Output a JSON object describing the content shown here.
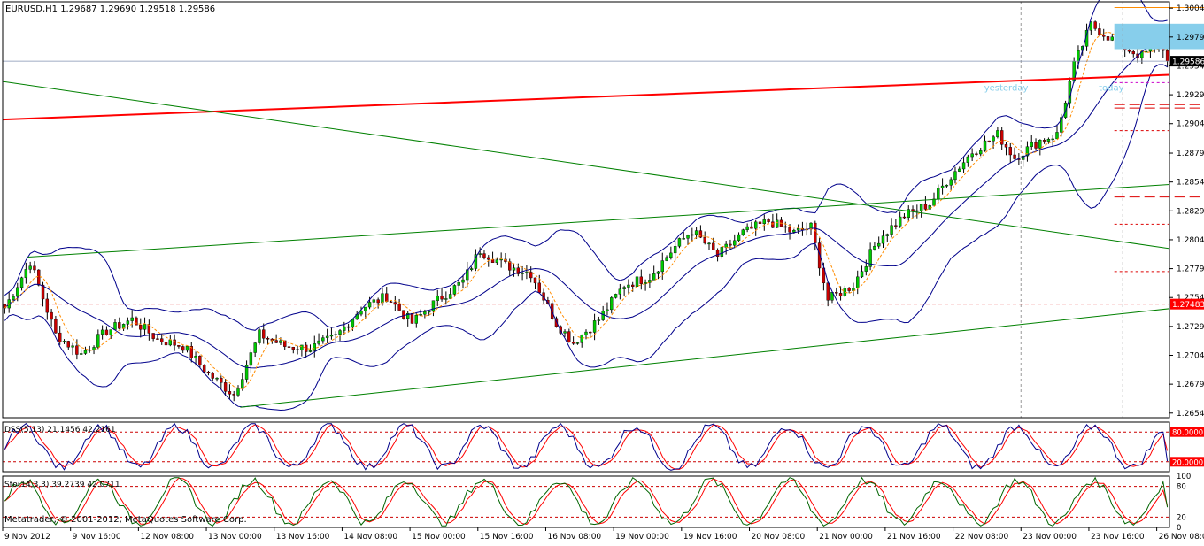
{
  "window": {
    "header": "EURUSD,H1  1.29687 1.29690 1.29518 1.29586",
    "copyright": "Metatrader, © 2001-2012, MetaQuotes Software Corp."
  },
  "chart_data": [
    {
      "type": "candlestick",
      "symbol": "EURUSD",
      "timeframe": "H1",
      "ohlc_last": {
        "open": 1.29687,
        "high": 1.2969,
        "low": 1.29518,
        "close": 1.29586
      },
      "ylim": [
        1.265,
        1.301
      ],
      "y_ticks": [
        "1.30045",
        "1.29795",
        "1.29545",
        "1.29295",
        "1.29045",
        "1.28790",
        "1.28540",
        "1.28290",
        "1.28040",
        "1.27790",
        "1.27540",
        "1.27290",
        "1.27040",
        "1.26790",
        "1.26540"
      ],
      "y_tick_values": [
        1.30045,
        1.29795,
        1.29545,
        1.29295,
        1.29045,
        1.2879,
        1.2854,
        1.2829,
        1.2804,
        1.2779,
        1.2754,
        1.2729,
        1.2704,
        1.2679,
        1.2654
      ],
      "price_tags": [
        {
          "label": "1.29586",
          "value": 1.29586,
          "bg": "#000000",
          "fg": "#ffffff"
        },
        {
          "label": "1.27483",
          "value": 1.27483,
          "bg": "#ff0000",
          "fg": "#ffffff"
        }
      ],
      "x_ticks": [
        "9 Nov 2012",
        "9 Nov 16:00",
        "12 Nov 08:00",
        "13 Nov 00:00",
        "13 Nov 16:00",
        "14 Nov 08:00",
        "15 Nov 00:00",
        "15 Nov 16:00",
        "16 Nov 08:00",
        "19 Nov 00:00",
        "19 Nov 16:00",
        "20 Nov 08:00",
        "21 Nov 00:00",
        "21 Nov 16:00",
        "22 Nov 08:00",
        "23 Nov 00:00",
        "23 Nov 16:00",
        "26 Nov 08:00"
      ],
      "x_tick_indices": [
        0,
        16,
        32,
        48,
        64,
        80,
        96,
        112,
        128,
        144,
        160,
        176,
        192,
        208,
        224,
        240,
        256,
        272
      ],
      "bar_count": 275,
      "anchors": [
        [
          0,
          1.2745
        ],
        [
          6,
          1.2785
        ],
        [
          12,
          1.2722
        ],
        [
          18,
          1.2705
        ],
        [
          24,
          1.2725
        ],
        [
          30,
          1.2735
        ],
        [
          36,
          1.2718
        ],
        [
          42,
          1.2712
        ],
        [
          48,
          1.2688
        ],
        [
          54,
          1.267
        ],
        [
          60,
          1.2722
        ],
        [
          66,
          1.2712
        ],
        [
          72,
          1.271
        ],
        [
          78,
          1.272
        ],
        [
          84,
          1.2745
        ],
        [
          90,
          1.2755
        ],
        [
          96,
          1.2732
        ],
        [
          102,
          1.2752
        ],
        [
          108,
          1.2768
        ],
        [
          112,
          1.2795
        ],
        [
          118,
          1.2782
        ],
        [
          124,
          1.2775
        ],
        [
          130,
          1.2732
        ],
        [
          134,
          1.2715
        ],
        [
          140,
          1.2735
        ],
        [
          146,
          1.2765
        ],
        [
          152,
          1.2772
        ],
        [
          158,
          1.2798
        ],
        [
          162,
          1.2812
        ],
        [
          168,
          1.279
        ],
        [
          174,
          1.281
        ],
        [
          180,
          1.282
        ],
        [
          186,
          1.281
        ],
        [
          190,
          1.2815
        ],
        [
          194,
          1.2752
        ],
        [
          200,
          1.2765
        ],
        [
          206,
          1.2805
        ],
        [
          212,
          1.2825
        ],
        [
          218,
          1.2835
        ],
        [
          222,
          1.2855
        ],
        [
          228,
          1.288
        ],
        [
          234,
          1.2895
        ],
        [
          238,
          1.2875
        ],
        [
          244,
          1.289
        ],
        [
          248,
          1.2895
        ],
        [
          252,
          1.2955
        ],
        [
          256,
          1.299
        ],
        [
          260,
          1.298
        ],
        [
          264,
          1.297
        ],
        [
          268,
          1.2963
        ],
        [
          272,
          1.2975
        ],
        [
          274,
          1.2959
        ]
      ],
      "lines": [
        {
          "name": "red trend line",
          "color": "#ff0000",
          "width": 2,
          "points": [
            [
              0,
              1.2908
            ],
            [
              310,
              1.29517
            ]
          ],
          "style": "solid"
        },
        {
          "name": "green descending",
          "color": "#008000",
          "width": 1,
          "points": [
            [
              0,
              1.2941
            ],
            [
              310,
              1.2778
            ]
          ],
          "style": "solid"
        },
        {
          "name": "green channel top",
          "color": "#008000",
          "width": 1,
          "points": [
            [
              6,
              1.2789
            ],
            [
              310,
              1.286
            ]
          ],
          "style": "solid"
        },
        {
          "name": "green channel bottom",
          "color": "#008000",
          "width": 1,
          "points": [
            [
              56,
              1.2659
            ],
            [
              310,
              1.2758
            ]
          ],
          "style": "solid"
        }
      ],
      "hlines": [
        {
          "value": 1.27483,
          "color": "#dd0000",
          "dash": "4,3",
          "from": 0
        },
        {
          "value": 1.294,
          "color": "#cc00cc",
          "dash": "3,3",
          "from": 262
        },
        {
          "value": 1.2921,
          "color": "#dd0000",
          "dash": "12,5",
          "from": 262,
          "to": 290
        },
        {
          "value": 1.2918,
          "color": "#dd0000",
          "dash": "12,5",
          "from": 262,
          "to": 290
        },
        {
          "value": 1.28985,
          "color": "#dd0000",
          "dash": "3,3",
          "from": 262
        },
        {
          "value": 1.2841,
          "color": "#dd0000",
          "dash": "12,5",
          "from": 262,
          "to": 288
        },
        {
          "value": 1.28175,
          "color": "#dd0000",
          "dash": "3,3",
          "from": 262
        },
        {
          "value": 1.27765,
          "color": "#dd0000",
          "dash": "3,3",
          "from": 262
        },
        {
          "value": 1.3005,
          "color": "#ff8c00",
          "dash": "",
          "from": 262,
          "to": 290
        }
      ],
      "current_price": 1.29586,
      "zone": {
        "x_from": 262,
        "x_to": 288,
        "y_from": 1.2969,
        "y_to": 1.2991,
        "color": "#87ceeb"
      },
      "vlines": [
        {
          "index": 240,
          "color": "#999999"
        },
        {
          "index": 264,
          "color": "#999999"
        }
      ],
      "labels": [
        {
          "text": "yesterday",
          "index": 233,
          "value": 1.2933,
          "color": "#87ceeb"
        },
        {
          "text": "today",
          "index": 260,
          "value": 1.2933,
          "color": "#87ceeb"
        }
      ]
    },
    {
      "type": "line",
      "name": "DSS(5,13) 21.1456 42.2161",
      "series_names": [
        "DSS",
        "Signal"
      ],
      "series_colors": [
        "#00008b",
        "#ff0000"
      ],
      "ylim": [
        0,
        100
      ],
      "levels": [
        {
          "label": "80.0000",
          "value": 80
        },
        {
          "label": "20.0000",
          "value": 20
        }
      ],
      "level_ticks": [
        "80",
        "20"
      ],
      "last_values": [
        21.1456,
        42.2161
      ]
    },
    {
      "type": "line",
      "name": "Sto(14,3,3) 39.2739 42.0711",
      "series_names": [
        "Sto",
        "Signal"
      ],
      "series_colors": [
        "#006400",
        "#ff0000"
      ],
      "ylim": [
        0,
        100
      ],
      "levels": [
        {
          "label": "80",
          "value": 80
        },
        {
          "label": "20",
          "value": 20
        }
      ],
      "level_ticks": [
        "100",
        "80",
        "20",
        "0"
      ],
      "last_values": [
        39.2739,
        42.0711
      ]
    }
  ]
}
